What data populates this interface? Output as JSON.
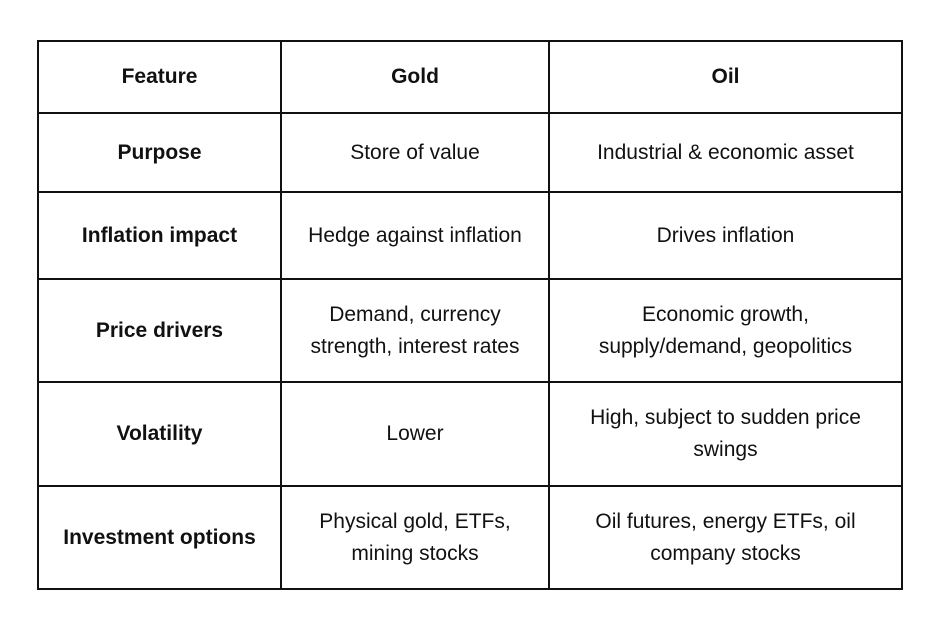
{
  "table": {
    "headers": [
      "Feature",
      "Gold",
      "Oil"
    ],
    "rows": [
      [
        "Purpose",
        "Store of value",
        "Industrial & economic asset"
      ],
      [
        "Inflation impact",
        "Hedge against inflation",
        "Drives inflation"
      ],
      [
        "Price drivers",
        "Demand, currency strength, interest rates",
        "Economic growth, supply/demand, geopolitics"
      ],
      [
        "Volatility",
        "Lower",
        "High, subject to sudden price swings"
      ],
      [
        "Investment options",
        "Physical gold, ETFs, mining stocks",
        "Oil futures, energy ETFs, oil company stocks"
      ]
    ]
  }
}
